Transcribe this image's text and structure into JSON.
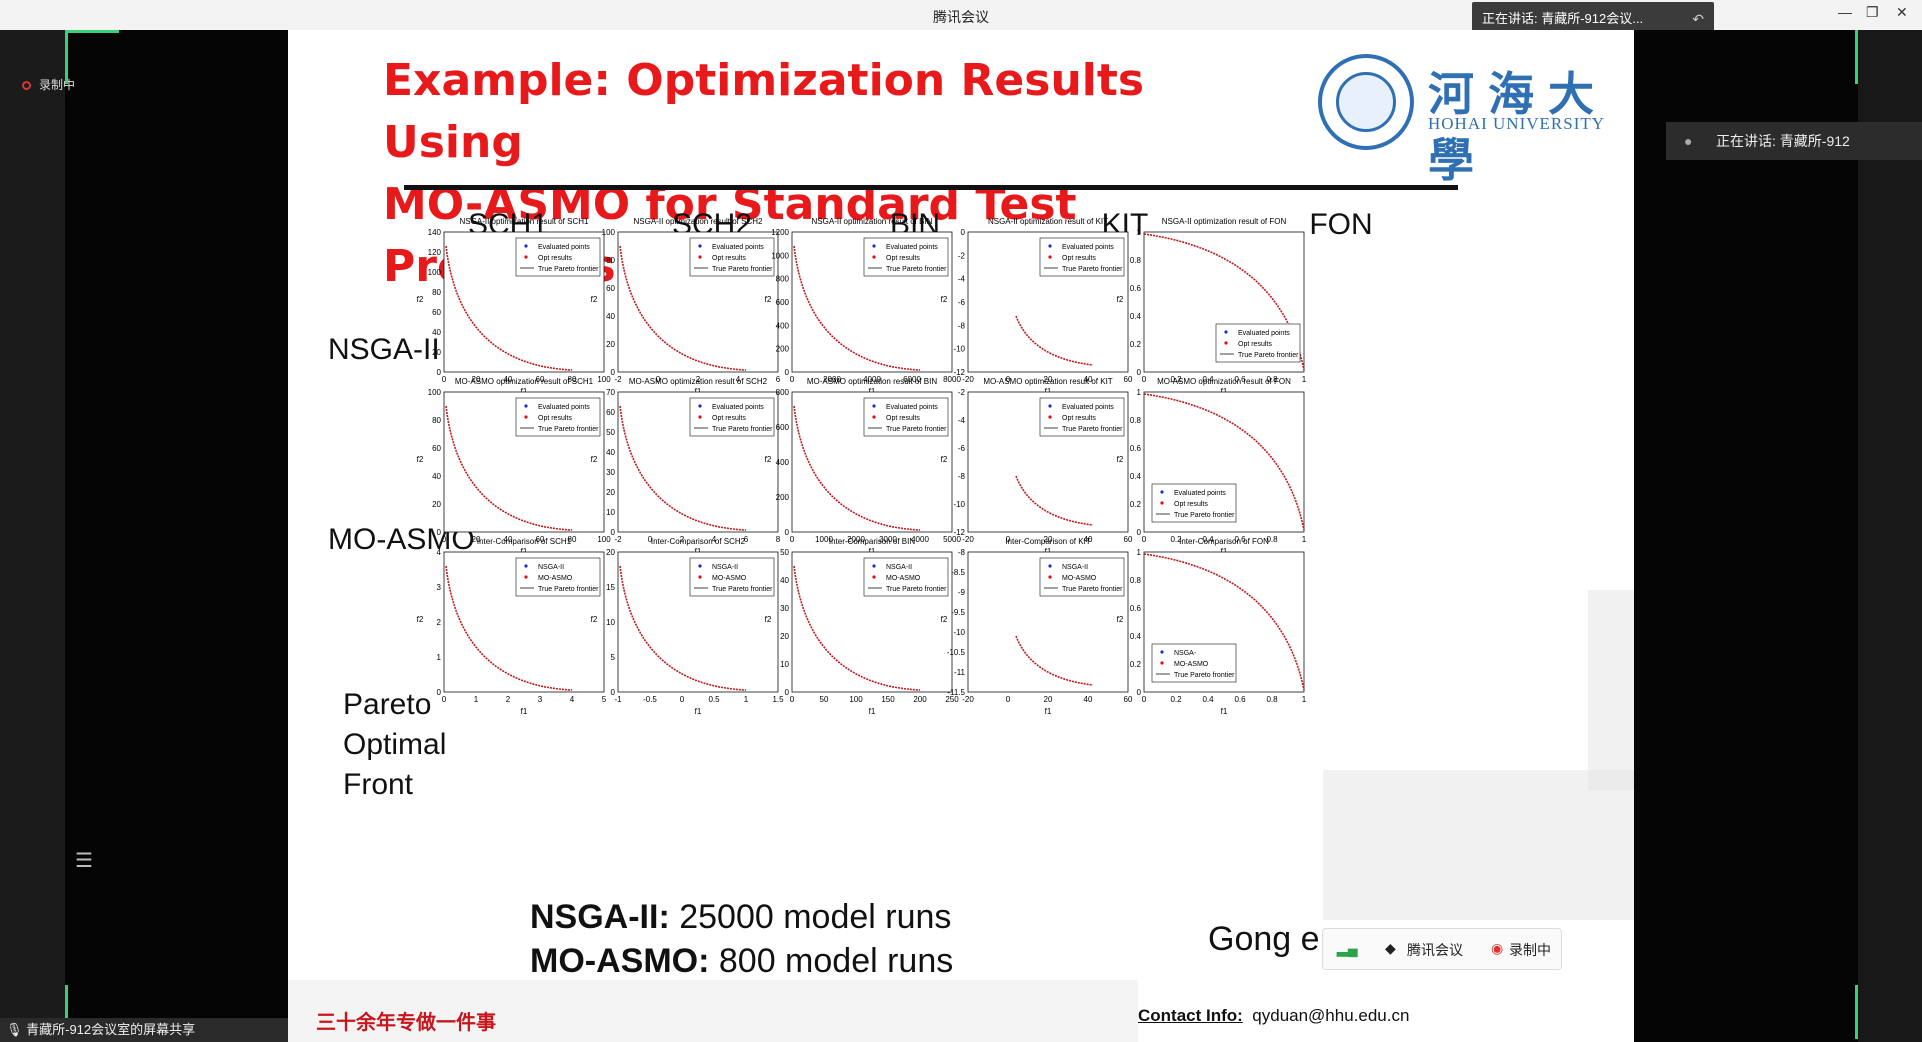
{
  "window": {
    "title": "腾讯会议",
    "speaking_top": "正在讲话: 青藏所-912会议...",
    "min": "—",
    "max": "❐",
    "close": "✕"
  },
  "left": {
    "recording": "录制中",
    "share_label": "青藏所-912会议室的屏幕共享"
  },
  "right": {
    "speaking": "正在讲话: 青藏所-912"
  },
  "slide": {
    "title_line1": "Example: Optimization Results Using",
    "title_line2": "MO-ASMO for Standard Test Problems",
    "logo_cn": "河海大學",
    "logo_en": "HOHAI UNIVERSITY",
    "columns": [
      "SCH1",
      "SCH2",
      "BIN",
      "KIT",
      "FON"
    ],
    "rows": [
      "NSGA-II",
      "MO-ASMO",
      "Pareto",
      "Optimal",
      "Front"
    ],
    "nsga_label": "NSGA-II:",
    "nsga_text": "25000 model runs",
    "moasmo_label": "MO-ASMO:",
    "moasmo_text": "800 model runs",
    "gong": "Gong e",
    "footer_cn": "三十余年专做一件事",
    "contact_label": "Contact Info:",
    "contact_email": "qyduan@hhu.edu.cn"
  },
  "meeting_bar": {
    "app": "腾讯会议",
    "rec": "录制中"
  },
  "plots": [
    {
      "title": "NSGA-II optimization result of SCH1",
      "xt": [
        "0",
        "20",
        "40",
        "60",
        "80",
        "100"
      ],
      "yt": [
        "0",
        "20",
        "40",
        "60",
        "80",
        "100",
        "120",
        "140"
      ],
      "legend": [
        "Evaluated points",
        "Opt results",
        "True Pareto frontier"
      ],
      "xl": "f1",
      "yl": "f2"
    },
    {
      "title": "NSGA-II optimization result of SCH2",
      "xt": [
        "-2",
        "0",
        "2",
        "4",
        "6"
      ],
      "yt": [
        "0",
        "20",
        "40",
        "60",
        "80",
        "100"
      ],
      "legend": [
        "Evaluated points",
        "Opt results",
        "True Pareto frontier"
      ],
      "xl": "f1",
      "yl": "f2"
    },
    {
      "title": "NSGA-II optimization result of BIN",
      "xt": [
        "0",
        "2000",
        "4000",
        "6000",
        "8000"
      ],
      "yt": [
        "0",
        "200",
        "400",
        "600",
        "800",
        "1000",
        "1200"
      ],
      "legend": [
        "Evaluated points",
        "Opt results",
        "True Pareto frontier"
      ],
      "xl": "f1",
      "yl": "f2"
    },
    {
      "title": "NSGA-II optimization result of KIT",
      "xt": [
        "-20",
        "0",
        "20",
        "40",
        "60"
      ],
      "yt": [
        "-12",
        "-10",
        "-8",
        "-6",
        "-4",
        "-2",
        "0"
      ],
      "legend": [
        "Evaluated points",
        "Opt results",
        "True Pareto frontier"
      ],
      "xl": "f1",
      "yl": "f2"
    },
    {
      "title": "NSGA-II optimization result of FON",
      "xt": [
        "0",
        "0.2",
        "0.4",
        "0.6",
        "0.8",
        "1"
      ],
      "yt": [
        "0",
        "0.2",
        "0.4",
        "0.6",
        "0.8",
        "1"
      ],
      "legend": [
        "Evaluated points",
        "Opt results",
        "True Pareto frontier"
      ],
      "xl": "f1",
      "yl": "f2"
    },
    {
      "title": "MO-ASMO optimization result of SCH1",
      "xt": [
        "0",
        "20",
        "40",
        "60",
        "80",
        "100"
      ],
      "yt": [
        "0",
        "20",
        "40",
        "60",
        "80",
        "100"
      ],
      "legend": [
        "Evaluated points",
        "Opt results",
        "True Pareto frontier"
      ],
      "xl": "f1",
      "yl": "f2"
    },
    {
      "title": "MO-ASMO optimization result of SCH2",
      "xt": [
        "-2",
        "0",
        "2",
        "4",
        "6",
        "8"
      ],
      "yt": [
        "0",
        "10",
        "20",
        "30",
        "40",
        "50",
        "60",
        "70"
      ],
      "legend": [
        "Evaluated points",
        "Opt results",
        "True Pareto frontier"
      ],
      "xl": "f1",
      "yl": "f2"
    },
    {
      "title": "MO-ASMO optimization result of BIN",
      "xt": [
        "0",
        "1000",
        "2000",
        "3000",
        "4000",
        "5000"
      ],
      "yt": [
        "0",
        "200",
        "400",
        "600",
        "800"
      ],
      "legend": [
        "Evaluated points",
        "Opt results",
        "True Pareto frontier"
      ],
      "xl": "f1",
      "yl": "f2"
    },
    {
      "title": "MO-ASMO optimization result of KIT",
      "xt": [
        "-20",
        "0",
        "20",
        "40",
        "60"
      ],
      "yt": [
        "-12",
        "-10",
        "-8",
        "-6",
        "-4",
        "-2"
      ],
      "legend": [
        "Evaluated points",
        "Opt results",
        "True Pareto frontier"
      ],
      "xl": "f1",
      "yl": "f2"
    },
    {
      "title": "MO-ASMO optimization result of FON",
      "xt": [
        "0",
        "0.2",
        "0.4",
        "0.6",
        "0.8",
        "1"
      ],
      "yt": [
        "0",
        "0.2",
        "0.4",
        "0.6",
        "0.8",
        "1"
      ],
      "legend": [
        "Evaluated points",
        "Opt results",
        "True Pareto frontier"
      ],
      "xl": "f1",
      "yl": "f2"
    },
    {
      "title": "Inter-Comparison of SCH1",
      "xt": [
        "0",
        "1",
        "2",
        "3",
        "4",
        "5"
      ],
      "yt": [
        "0",
        "1",
        "2",
        "3",
        "4"
      ],
      "legend": [
        "NSGA-II",
        "MO-ASMO",
        "True Pareto frontier"
      ],
      "xl": "f1",
      "yl": "f2"
    },
    {
      "title": "Inter-Comparison of SCH2",
      "xt": [
        "-1",
        "-0.5",
        "0",
        "0.5",
        "1",
        "1.5"
      ],
      "yt": [
        "0",
        "5",
        "10",
        "15",
        "20"
      ],
      "legend": [
        "NSGA-II",
        "MO-ASMO",
        "True Pareto frontier"
      ],
      "xl": "f1",
      "yl": "f2"
    },
    {
      "title": "Inter-Comparison of BIN",
      "xt": [
        "0",
        "50",
        "100",
        "150",
        "200",
        "250"
      ],
      "yt": [
        "0",
        "10",
        "20",
        "30",
        "40",
        "50"
      ],
      "legend": [
        "NSGA-II",
        "MO-ASMO",
        "True Pareto frontier"
      ],
      "xl": "f1",
      "yl": "f2"
    },
    {
      "title": "Inter-Comparison of KIT",
      "xt": [
        "-20",
        "0",
        "20",
        "40",
        "60"
      ],
      "yt": [
        "-11.5",
        "-11",
        "-10.5",
        "-10",
        "-9.5",
        "-9",
        "-8.5",
        "-8"
      ],
      "legend": [
        "NSGA-II",
        "MO-ASMO",
        "True Pareto frontier"
      ],
      "xl": "f1",
      "yl": "f2"
    },
    {
      "title": "Inter-Comparison of FON",
      "xt": [
        "0",
        "0.2",
        "0.4",
        "0.6",
        "0.8",
        "1"
      ],
      "yt": [
        "0",
        "0.2",
        "0.4",
        "0.6",
        "0.8",
        "1"
      ],
      "legend": [
        "NSGA-",
        "MO-ASMO",
        "True Pareto frontier"
      ],
      "xl": "f1",
      "yl": "f2"
    }
  ]
}
